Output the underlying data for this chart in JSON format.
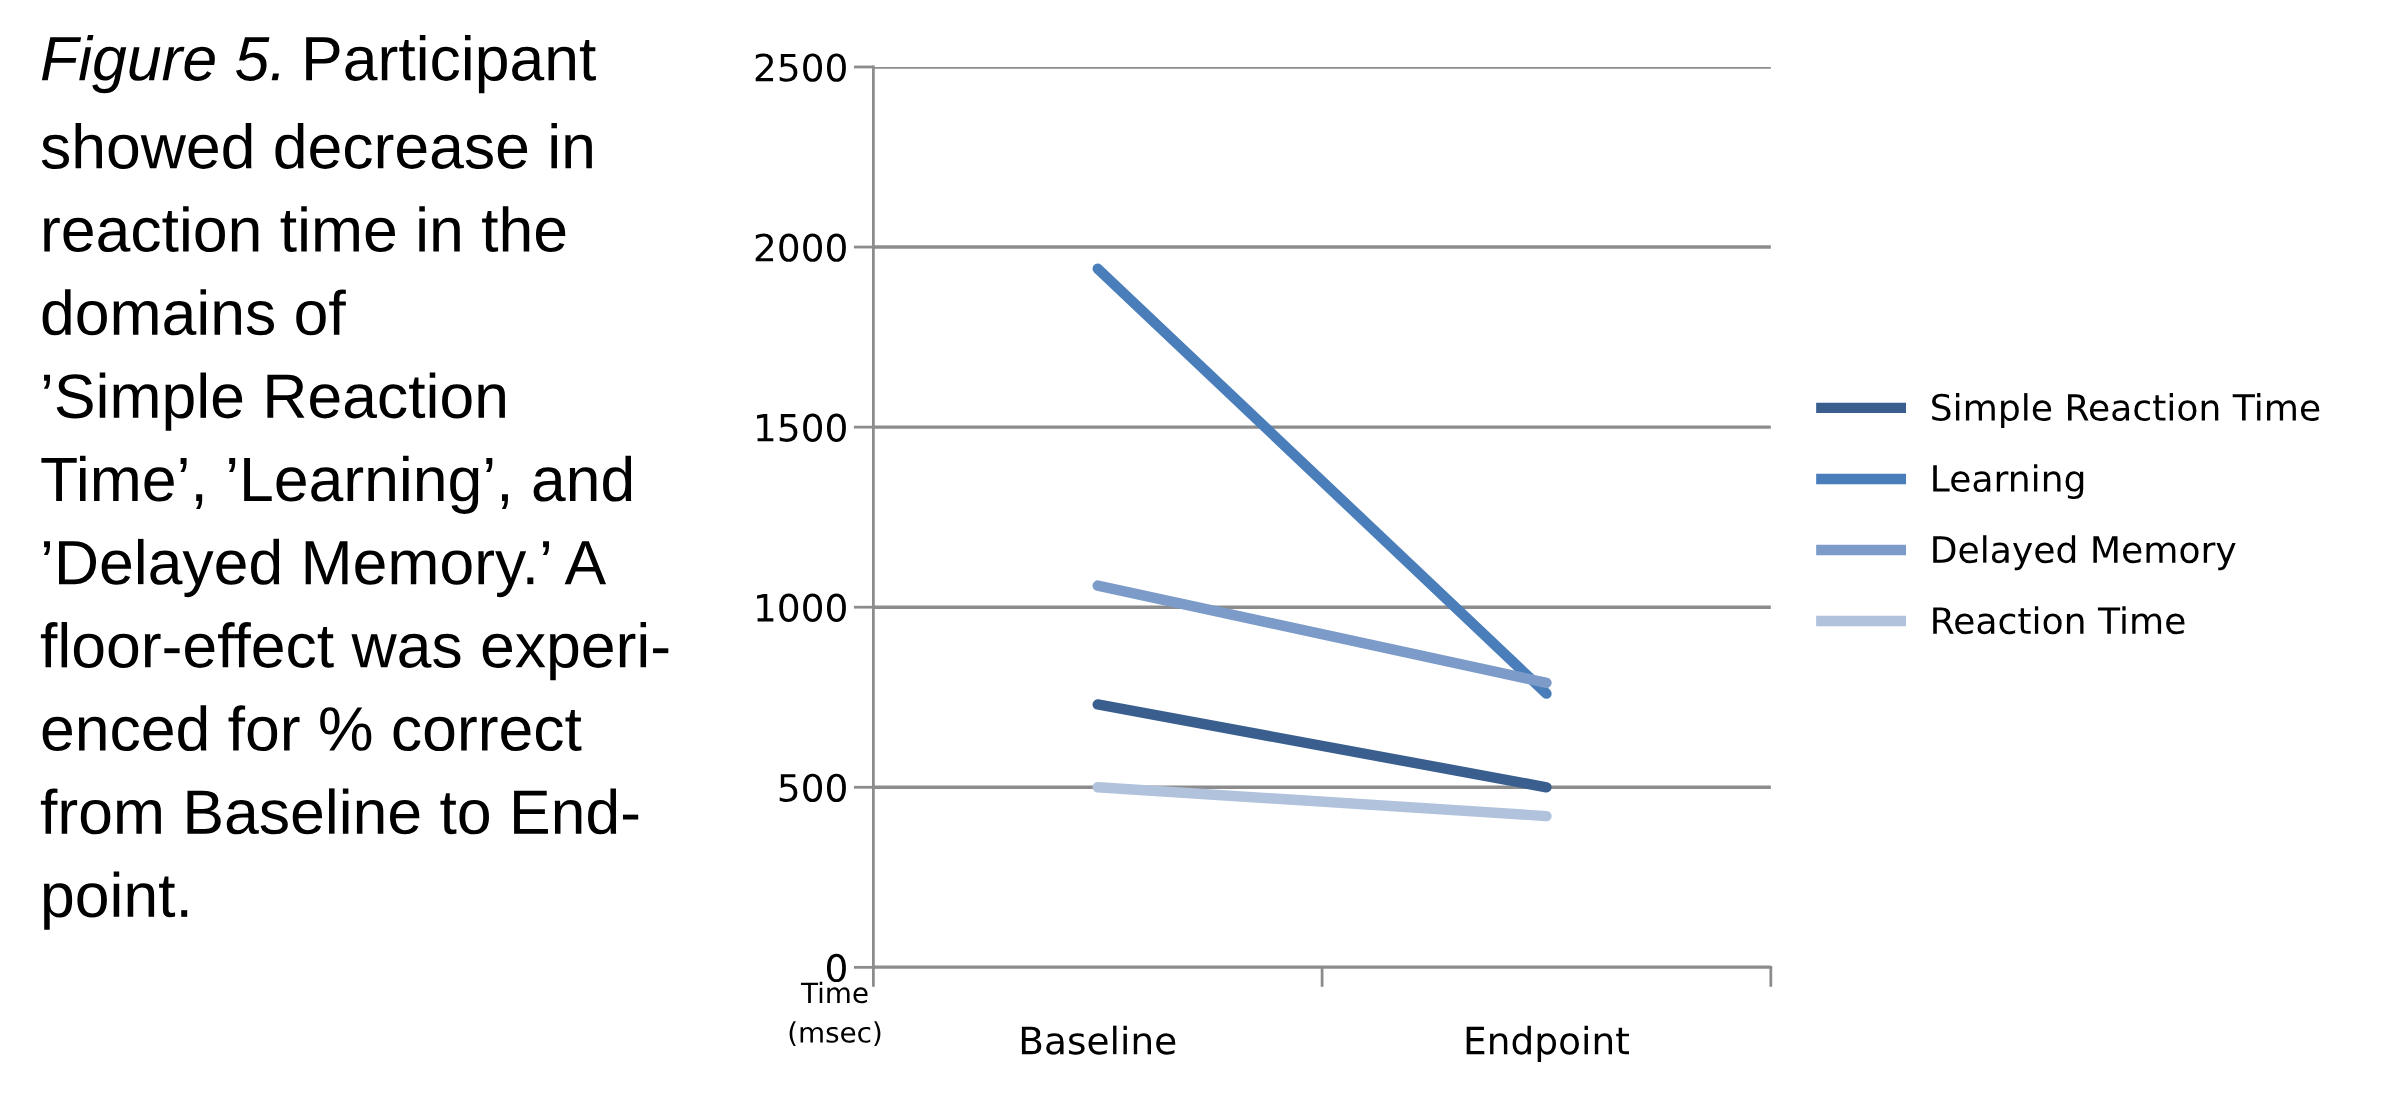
{
  "chart_data": {
    "type": "line",
    "categories": [
      "Baseline",
      "Endpoint"
    ],
    "series": [
      {
        "name": "Simple Reaction Time",
        "color": "#3a5f8f",
        "values": [
          730,
          500
        ]
      },
      {
        "name": "Learning",
        "color": "#4a7ebb",
        "values": [
          1940,
          760
        ]
      },
      {
        "name": "Delayed Memory",
        "color": "#7d9bc9",
        "values": [
          1060,
          790
        ]
      },
      {
        "name": "Reaction Time",
        "color": "#b0c2dc",
        "values": [
          500,
          420
        ]
      }
    ],
    "ylabel": "Time\n(msec)",
    "ylim": [
      0,
      2500
    ],
    "yticks": [
      0,
      500,
      1000,
      1500,
      2000,
      2500
    ],
    "grid": "y",
    "legend": "right",
    "marker": "none",
    "line_style": "solid",
    "annotations": [
      "Figure 5.",
      "Participant\nshowed decrease in\nreaction time in the\ndomains of\n’Simple Reaction\nTime’, ’Learning’, and\n’Delayed Memory.’ A\nfloor-effect was experi-\nenced for % correct\nfrom Baseline to End-\npoint."
    ]
  }
}
